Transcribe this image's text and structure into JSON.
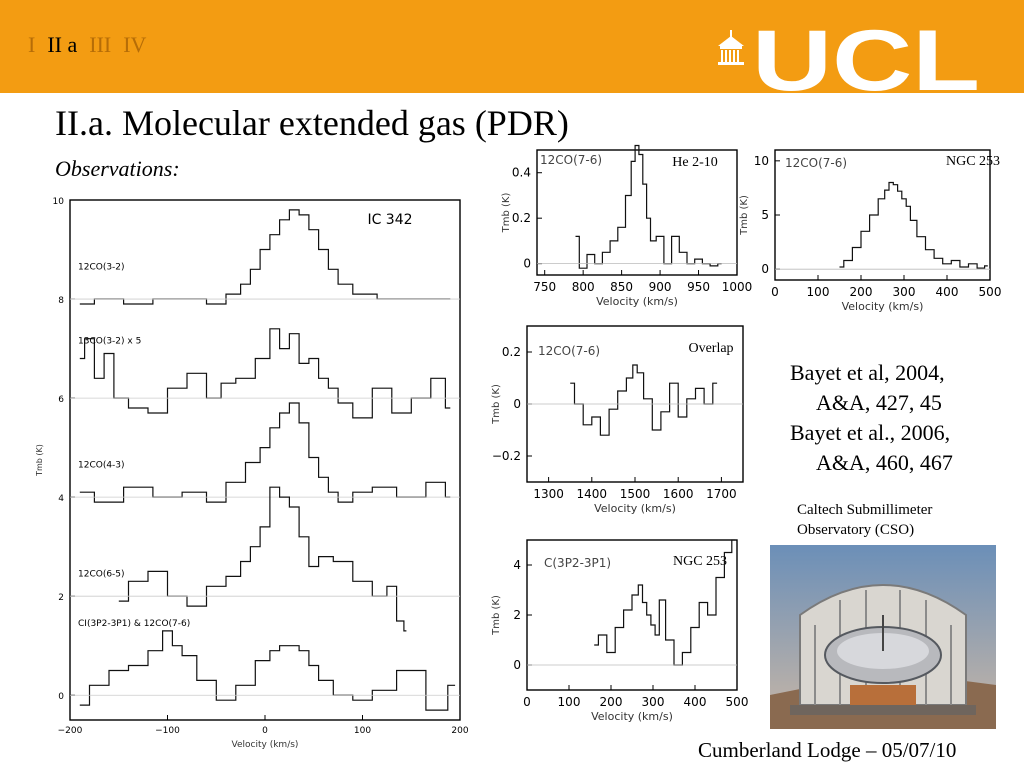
{
  "nav": {
    "items": [
      "I",
      "II a",
      "III",
      "IV"
    ],
    "current_index": 1
  },
  "brand": {
    "logo_text": "UCL",
    "bar_color": "#f39c12"
  },
  "slide": {
    "title": "II.a. Molecular extended gas (PDR)",
    "subtitle": "Observations:"
  },
  "references": {
    "line1": "Bayet et al, 2004,",
    "line2": "A&A, 427, 45",
    "line3": "Bayet et al., 2006,",
    "line4": "A&A, 460, 467"
  },
  "photo": {
    "caption_line1": "Caltech Submillimeter",
    "caption_line2": "Observatory (CSO)"
  },
  "footer": {
    "text": "Cumberland Lodge – 05/07/10"
  },
  "chart_data": [
    {
      "id": "ic342",
      "type": "line",
      "title": "IC 342",
      "xlabel": "Velocity (km/s)",
      "ylabel": "Tmb (K)",
      "xlim": [
        -200,
        200
      ],
      "ylim": [
        -0.5,
        10
      ],
      "xticks": [
        -200,
        -100,
        0,
        100,
        200
      ],
      "yticks": [
        0,
        2,
        4,
        6,
        8,
        10
      ],
      "series": [
        {
          "name": "12CO(3-2)",
          "offset": 8,
          "label_value": 8.6,
          "x": [
            -190,
            -160,
            -130,
            -100,
            -70,
            -50,
            -30,
            -20,
            -10,
            0,
            10,
            20,
            30,
            40,
            50,
            60,
            70,
            80,
            100,
            130,
            160,
            190
          ],
          "values": [
            7.9,
            8.0,
            7.9,
            8.0,
            8.0,
            7.9,
            8.1,
            8.3,
            8.6,
            9.0,
            9.3,
            9.6,
            9.8,
            9.7,
            9.4,
            9.0,
            8.6,
            8.3,
            8.1,
            8.0,
            8.0,
            8.0
          ]
        },
        {
          "name": "13CO(3-2) x 5",
          "offset": 6,
          "label_value": 7.1,
          "x": [
            -190,
            -180,
            -170,
            -160,
            -150,
            -130,
            -110,
            -90,
            -70,
            -50,
            -40,
            -20,
            0,
            10,
            20,
            30,
            40,
            50,
            60,
            70,
            80,
            100,
            120,
            140,
            160,
            180,
            190
          ],
          "values": [
            6.8,
            7.2,
            6.4,
            6.9,
            6.0,
            5.8,
            5.7,
            6.2,
            6.5,
            6.0,
            6.3,
            6.4,
            6.8,
            7.4,
            7.0,
            7.3,
            6.7,
            6.8,
            6.4,
            6.2,
            5.9,
            5.6,
            6.2,
            5.7,
            6.0,
            6.4,
            5.8
          ]
        },
        {
          "name": "12CO(4-3)",
          "offset": 4,
          "label_value": 4.6,
          "x": [
            -190,
            -160,
            -130,
            -100,
            -70,
            -50,
            -30,
            -10,
            0,
            10,
            20,
            30,
            40,
            50,
            60,
            70,
            80,
            100,
            120,
            150,
            180,
            190
          ],
          "values": [
            4.1,
            3.9,
            4.2,
            4.0,
            4.1,
            3.9,
            4.3,
            4.7,
            5.0,
            5.4,
            5.7,
            5.9,
            5.5,
            4.8,
            4.4,
            4.1,
            3.9,
            4.1,
            4.2,
            4.0,
            4.3,
            4.0
          ]
        },
        {
          "name": "12CO(6-5)",
          "offset": 2,
          "label_value": 2.4,
          "x": [
            -150,
            -130,
            -110,
            -90,
            -70,
            -50,
            -30,
            -20,
            -10,
            0,
            10,
            20,
            30,
            40,
            50,
            60,
            80,
            100,
            120,
            130,
            140,
            145
          ],
          "values": [
            1.9,
            2.3,
            2.5,
            2.0,
            1.8,
            2.2,
            2.4,
            2.7,
            3.0,
            3.4,
            4.2,
            4.0,
            3.8,
            3.2,
            2.6,
            2.8,
            2.7,
            2.3,
            2.0,
            2.2,
            1.5,
            1.3
          ]
        },
        {
          "name": "CI(3P2-3P1) & 12CO(7-6)",
          "offset": 0,
          "label_value": 1.4,
          "x": [
            -190,
            -170,
            -150,
            -130,
            -110,
            -100,
            -90,
            -80,
            -60,
            -40,
            -20,
            0,
            10,
            20,
            30,
            40,
            50,
            60,
            80,
            100,
            120,
            150,
            180,
            195
          ],
          "values": [
            -0.2,
            0.2,
            0.5,
            0.6,
            0.9,
            1.3,
            1.0,
            0.8,
            0.3,
            -0.1,
            0.2,
            0.7,
            0.9,
            1.0,
            1.0,
            0.9,
            0.6,
            0.3,
            0.0,
            -0.1,
            0.1,
            0.5,
            -0.3,
            0.2
          ]
        }
      ]
    },
    {
      "id": "he210",
      "type": "line",
      "title": "He 2-10",
      "line_label": "12CO(7-6)",
      "xlabel": "Velocity (km/s)",
      "ylabel": "Tmb (K)",
      "xlim": [
        740,
        1000
      ],
      "ylim": [
        -0.05,
        0.5
      ],
      "xticks": [
        750,
        800,
        850,
        900,
        950,
        1000
      ],
      "yticks": [
        0,
        0.2,
        0.4
      ],
      "series": [
        {
          "name": "",
          "x": [
            790,
            800,
            810,
            820,
            830,
            840,
            850,
            860,
            865,
            870,
            875,
            880,
            885,
            890,
            900,
            910,
            920,
            930,
            940,
            950,
            960,
            970,
            980
          ],
          "values": [
            0.12,
            -0.02,
            0.04,
            0.0,
            0.05,
            0.1,
            0.16,
            0.3,
            0.45,
            0.52,
            0.48,
            0.35,
            0.2,
            0.1,
            0.12,
            0.0,
            0.12,
            0.05,
            0.0,
            0.02,
            0.0,
            -0.01,
            0.0
          ]
        }
      ]
    },
    {
      "id": "ngc253a",
      "type": "line",
      "title": "NGC 253",
      "line_label": "12CO(7-6)",
      "xlabel": "Velocity (km/s)",
      "ylabel": "Tmb (K)",
      "xlim": [
        0,
        500
      ],
      "ylim": [
        -1,
        11
      ],
      "xticks": [
        0,
        100,
        200,
        300,
        400,
        500
      ],
      "yticks": [
        0,
        5,
        10
      ],
      "series": [
        {
          "name": "",
          "x": [
            150,
            170,
            190,
            210,
            230,
            250,
            260,
            270,
            280,
            290,
            300,
            310,
            320,
            340,
            360,
            380,
            400,
            420,
            440,
            460,
            480,
            495
          ],
          "values": [
            0.2,
            0.8,
            2.0,
            3.5,
            5.0,
            6.5,
            7.3,
            8.0,
            7.8,
            7.2,
            6.5,
            5.8,
            4.5,
            3.0,
            1.8,
            1.0,
            0.5,
            0.8,
            0.2,
            0.5,
            0.1,
            0.3
          ]
        }
      ]
    },
    {
      "id": "overlap",
      "type": "line",
      "title": "Overlap",
      "line_label": "12CO(7-6)",
      "xlabel": "Velocity (km/s)",
      "ylabel": "Tmb (K)",
      "xlim": [
        1250,
        1750
      ],
      "ylim": [
        -0.3,
        0.3
      ],
      "xticks": [
        1300,
        1400,
        1500,
        1600,
        1700
      ],
      "yticks": [
        -0.2,
        0,
        0.2
      ],
      "series": [
        {
          "name": "",
          "x": [
            1350,
            1370,
            1390,
            1410,
            1430,
            1450,
            1470,
            1490,
            1500,
            1510,
            1530,
            1550,
            1570,
            1590,
            1610,
            1630,
            1650,
            1670,
            1690
          ],
          "values": [
            0.08,
            0.0,
            -0.08,
            -0.05,
            -0.12,
            -0.02,
            0.05,
            0.1,
            0.15,
            0.12,
            0.02,
            -0.1,
            -0.03,
            0.08,
            -0.05,
            0.02,
            0.06,
            0.0,
            0.08
          ]
        }
      ]
    },
    {
      "id": "ngc253b",
      "type": "line",
      "title": "NGC 253",
      "line_label": "C(3P2-3P1)",
      "xlabel": "Velocity (km/s)",
      "ylabel": "Tmb (K)",
      "xlim": [
        0,
        500
      ],
      "ylim": [
        -1,
        5
      ],
      "xticks": [
        0,
        100,
        200,
        300,
        400,
        500
      ],
      "yticks": [
        0,
        2,
        4
      ],
      "series": [
        {
          "name": "",
          "x": [
            160,
            180,
            200,
            220,
            240,
            260,
            270,
            280,
            290,
            300,
            310,
            320,
            340,
            360,
            380,
            400,
            420,
            440,
            460,
            480,
            495
          ],
          "values": [
            0.8,
            1.2,
            0.5,
            1.5,
            2.2,
            2.8,
            3.2,
            2.5,
            2.0,
            1.6,
            1.2,
            2.6,
            1.0,
            0.0,
            0.5,
            1.5,
            2.5,
            2.0,
            3.5,
            4.5,
            5.0
          ]
        }
      ]
    }
  ]
}
